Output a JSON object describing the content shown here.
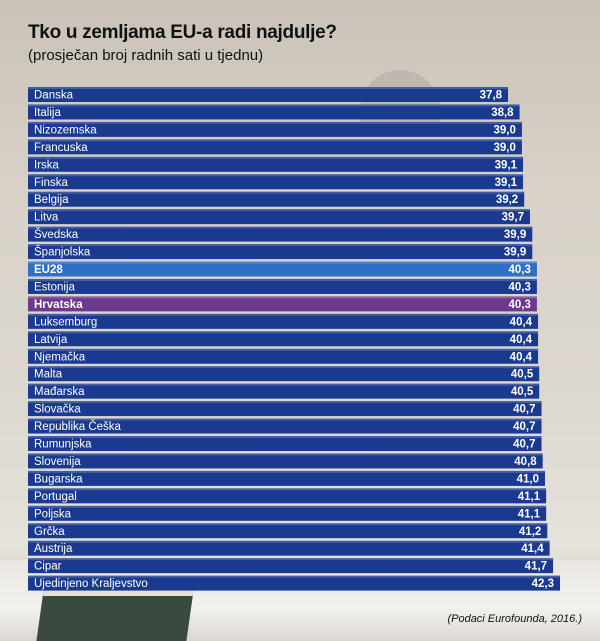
{
  "chart_data": {
    "type": "bar",
    "orientation": "horizontal",
    "title": "Tko u zemljama EU-a radi najdulje?",
    "subtitle": "(prosječan broj radnih sati u tjednu)",
    "source": "(Podaci Eurofounda, 2016.)",
    "xlim": [
      0,
      42.3
    ],
    "categories": [
      "Danska",
      "Italija",
      "Nizozemska",
      "Francuska",
      "Irska",
      "Finska",
      "Belgija",
      "Litva",
      "Švedska",
      "Španjolska",
      "EU28",
      "Estonija",
      "Hrvatska",
      "Luksemburg",
      "Latvija",
      "Njemačka",
      "Malta",
      "Mađarska",
      "Slovačka",
      "Republika Češka",
      "Rumunjska",
      "Slovenija",
      "Bugarska",
      "Portugal",
      "Poljska",
      "Grčka",
      "Austrija",
      "Cipar",
      "Ujedinjeno Kraljevstvo"
    ],
    "values": [
      37.8,
      38.8,
      39.0,
      39.0,
      39.1,
      39.1,
      39.2,
      39.7,
      39.9,
      39.9,
      40.3,
      40.3,
      40.3,
      40.4,
      40.4,
      40.4,
      40.5,
      40.5,
      40.7,
      40.7,
      40.7,
      40.8,
      41.0,
      41.1,
      41.1,
      41.2,
      41.4,
      41.7,
      42.3
    ],
    "value_labels": [
      "37,8",
      "38,8",
      "39,0",
      "39,0",
      "39,1",
      "39,1",
      "39,2",
      "39,7",
      "39,9",
      "39,9",
      "40,3",
      "40,3",
      "40,3",
      "40,4",
      "40,4",
      "40,4",
      "40,5",
      "40,5",
      "40,7",
      "40,7",
      "40,7",
      "40,8",
      "41,0",
      "41,1",
      "41,1",
      "41,2",
      "41,4",
      "41,7",
      "42,3"
    ],
    "highlights": {
      "EU28": "#2f6fc4",
      "Hrvatska": "#6b3a8e"
    },
    "bar_color": "#1a3a8f",
    "star_color": "#d9c21c"
  }
}
